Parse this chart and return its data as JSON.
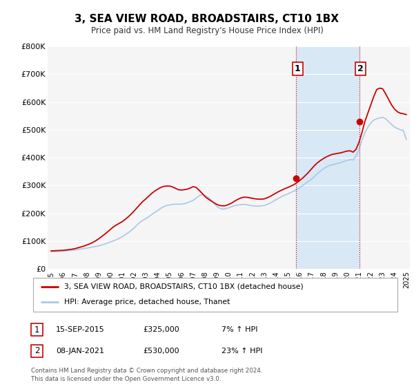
{
  "title": "3, SEA VIEW ROAD, BROADSTAIRS, CT10 1BX",
  "subtitle": "Price paid vs. HM Land Registry's House Price Index (HPI)",
  "ylim": [
    0,
    800000
  ],
  "yticks": [
    0,
    100000,
    200000,
    300000,
    400000,
    500000,
    600000,
    700000,
    800000
  ],
  "ytick_labels": [
    "£0",
    "£100K",
    "£200K",
    "£300K",
    "£400K",
    "£500K",
    "£600K",
    "£700K",
    "£800K"
  ],
  "hpi_color": "#a8c8e8",
  "price_color": "#cc0000",
  "shaded_start_x": 2015.71,
  "shaded_end_x": 2021.05,
  "marker1_x": 2015.71,
  "marker1_y": 325000,
  "marker2_x": 2021.05,
  "marker2_y": 530000,
  "annotation1_label": "1",
  "annotation2_label": "2",
  "legend_price_label": "3, SEA VIEW ROAD, BROADSTAIRS, CT10 1BX (detached house)",
  "legend_hpi_label": "HPI: Average price, detached house, Thanet",
  "table_row1": [
    "1",
    "15-SEP-2015",
    "£325,000",
    "7% ↑ HPI"
  ],
  "table_row2": [
    "2",
    "08-JAN-2021",
    "£530,000",
    "23% ↑ HPI"
  ],
  "footnote": "Contains HM Land Registry data © Crown copyright and database right 2024.\nThis data is licensed under the Open Government Licence v3.0.",
  "hpi_x": [
    1995.0,
    1995.25,
    1995.5,
    1995.75,
    1996.0,
    1996.25,
    1996.5,
    1996.75,
    1997.0,
    1997.25,
    1997.5,
    1997.75,
    1998.0,
    1998.25,
    1998.5,
    1998.75,
    1999.0,
    1999.25,
    1999.5,
    1999.75,
    2000.0,
    2000.25,
    2000.5,
    2000.75,
    2001.0,
    2001.25,
    2001.5,
    2001.75,
    2002.0,
    2002.25,
    2002.5,
    2002.75,
    2003.0,
    2003.25,
    2003.5,
    2003.75,
    2004.0,
    2004.25,
    2004.5,
    2004.75,
    2005.0,
    2005.25,
    2005.5,
    2005.75,
    2006.0,
    2006.25,
    2006.5,
    2006.75,
    2007.0,
    2007.25,
    2007.5,
    2007.75,
    2008.0,
    2008.25,
    2008.5,
    2008.75,
    2009.0,
    2009.25,
    2009.5,
    2009.75,
    2010.0,
    2010.25,
    2010.5,
    2010.75,
    2011.0,
    2011.25,
    2011.5,
    2011.75,
    2012.0,
    2012.25,
    2012.5,
    2012.75,
    2013.0,
    2013.25,
    2013.5,
    2013.75,
    2014.0,
    2014.25,
    2014.5,
    2014.75,
    2015.0,
    2015.25,
    2015.5,
    2015.75,
    2016.0,
    2016.25,
    2016.5,
    2016.75,
    2017.0,
    2017.25,
    2017.5,
    2017.75,
    2018.0,
    2018.25,
    2018.5,
    2018.75,
    2019.0,
    2019.25,
    2019.5,
    2019.75,
    2020.0,
    2020.25,
    2020.5,
    2020.75,
    2021.0,
    2021.25,
    2021.5,
    2021.75,
    2022.0,
    2022.25,
    2022.5,
    2022.75,
    2023.0,
    2023.25,
    2023.5,
    2023.75,
    2024.0,
    2024.25,
    2024.5,
    2024.75,
    2025.0
  ],
  "hpi_y": [
    62000,
    62500,
    63000,
    63500,
    64000,
    65000,
    66000,
    67000,
    68000,
    70000,
    72000,
    73500,
    75000,
    77000,
    79000,
    81000,
    83000,
    86000,
    89000,
    93000,
    97000,
    101000,
    105000,
    110000,
    116000,
    123000,
    130000,
    138000,
    147000,
    158000,
    168000,
    175000,
    181000,
    188000,
    196000,
    203000,
    210000,
    218000,
    224000,
    228000,
    230000,
    232000,
    233000,
    233000,
    233000,
    235000,
    238000,
    242000,
    247000,
    255000,
    263000,
    267000,
    265000,
    258000,
    248000,
    237000,
    225000,
    218000,
    215000,
    217000,
    220000,
    224000,
    228000,
    230000,
    231000,
    232000,
    231000,
    229000,
    227000,
    226000,
    226000,
    227000,
    228000,
    232000,
    237000,
    243000,
    249000,
    255000,
    261000,
    266000,
    270000,
    275000,
    280000,
    286000,
    292000,
    300000,
    308000,
    315000,
    323000,
    333000,
    343000,
    352000,
    360000,
    367000,
    372000,
    375000,
    377000,
    380000,
    383000,
    387000,
    390000,
    393000,
    392000,
    405000,
    430000,
    463000,
    490000,
    510000,
    525000,
    535000,
    540000,
    543000,
    545000,
    540000,
    530000,
    520000,
    510000,
    505000,
    500000,
    498000,
    465000
  ],
  "price_x": [
    1995.0,
    1995.25,
    1995.5,
    1995.75,
    1996.0,
    1996.25,
    1996.5,
    1996.75,
    1997.0,
    1997.25,
    1997.5,
    1997.75,
    1998.0,
    1998.25,
    1998.5,
    1998.75,
    1999.0,
    1999.25,
    1999.5,
    1999.75,
    2000.0,
    2000.25,
    2000.5,
    2000.75,
    2001.0,
    2001.25,
    2001.5,
    2001.75,
    2002.0,
    2002.25,
    2002.5,
    2002.75,
    2003.0,
    2003.25,
    2003.5,
    2003.75,
    2004.0,
    2004.25,
    2004.5,
    2004.75,
    2005.0,
    2005.25,
    2005.5,
    2005.75,
    2006.0,
    2006.25,
    2006.5,
    2006.75,
    2007.0,
    2007.25,
    2007.5,
    2007.75,
    2008.0,
    2008.25,
    2008.5,
    2008.75,
    2009.0,
    2009.25,
    2009.5,
    2009.75,
    2010.0,
    2010.25,
    2010.5,
    2010.75,
    2011.0,
    2011.25,
    2011.5,
    2011.75,
    2012.0,
    2012.25,
    2012.5,
    2012.75,
    2013.0,
    2013.25,
    2013.5,
    2013.75,
    2014.0,
    2014.25,
    2014.5,
    2014.75,
    2015.0,
    2015.25,
    2015.5,
    2015.75,
    2016.0,
    2016.25,
    2016.5,
    2016.75,
    2017.0,
    2017.25,
    2017.5,
    2017.75,
    2018.0,
    2018.25,
    2018.5,
    2018.75,
    2019.0,
    2019.25,
    2019.5,
    2019.75,
    2020.0,
    2020.25,
    2020.5,
    2020.75,
    2021.0,
    2021.25,
    2021.5,
    2021.75,
    2022.0,
    2022.25,
    2022.5,
    2022.75,
    2023.0,
    2023.25,
    2023.5,
    2023.75,
    2024.0,
    2024.25,
    2024.5,
    2024.75,
    2025.0
  ],
  "price_y": [
    65000,
    65500,
    66000,
    66500,
    67000,
    68000,
    69500,
    71000,
    73000,
    76000,
    79000,
    82000,
    86000,
    90000,
    95000,
    101000,
    108000,
    116000,
    124000,
    133000,
    142000,
    151000,
    158000,
    164000,
    170000,
    178000,
    187000,
    197000,
    208000,
    220000,
    232000,
    243000,
    252000,
    262000,
    272000,
    280000,
    287000,
    293000,
    297000,
    298000,
    298000,
    295000,
    290000,
    285000,
    284000,
    285000,
    287000,
    291000,
    296000,
    293000,
    283000,
    272000,
    260000,
    252000,
    245000,
    238000,
    232000,
    228000,
    227000,
    228000,
    232000,
    237000,
    244000,
    250000,
    255000,
    258000,
    258000,
    256000,
    254000,
    252000,
    251000,
    251000,
    252000,
    256000,
    261000,
    267000,
    273000,
    279000,
    284000,
    289000,
    293000,
    298000,
    303000,
    310000,
    318000,
    327000,
    337000,
    348000,
    360000,
    372000,
    382000,
    390000,
    397000,
    403000,
    408000,
    412000,
    414000,
    416000,
    418000,
    421000,
    424000,
    425000,
    420000,
    430000,
    455000,
    490000,
    530000,
    560000,
    590000,
    620000,
    645000,
    650000,
    648000,
    630000,
    610000,
    590000,
    575000,
    565000,
    560000,
    558000,
    555000
  ],
  "chart_bg": "#f5f5f5",
  "shaded_color": "#d8e8f5",
  "grid_color": "#ffffff",
  "xlim": [
    1994.7,
    2025.3
  ]
}
